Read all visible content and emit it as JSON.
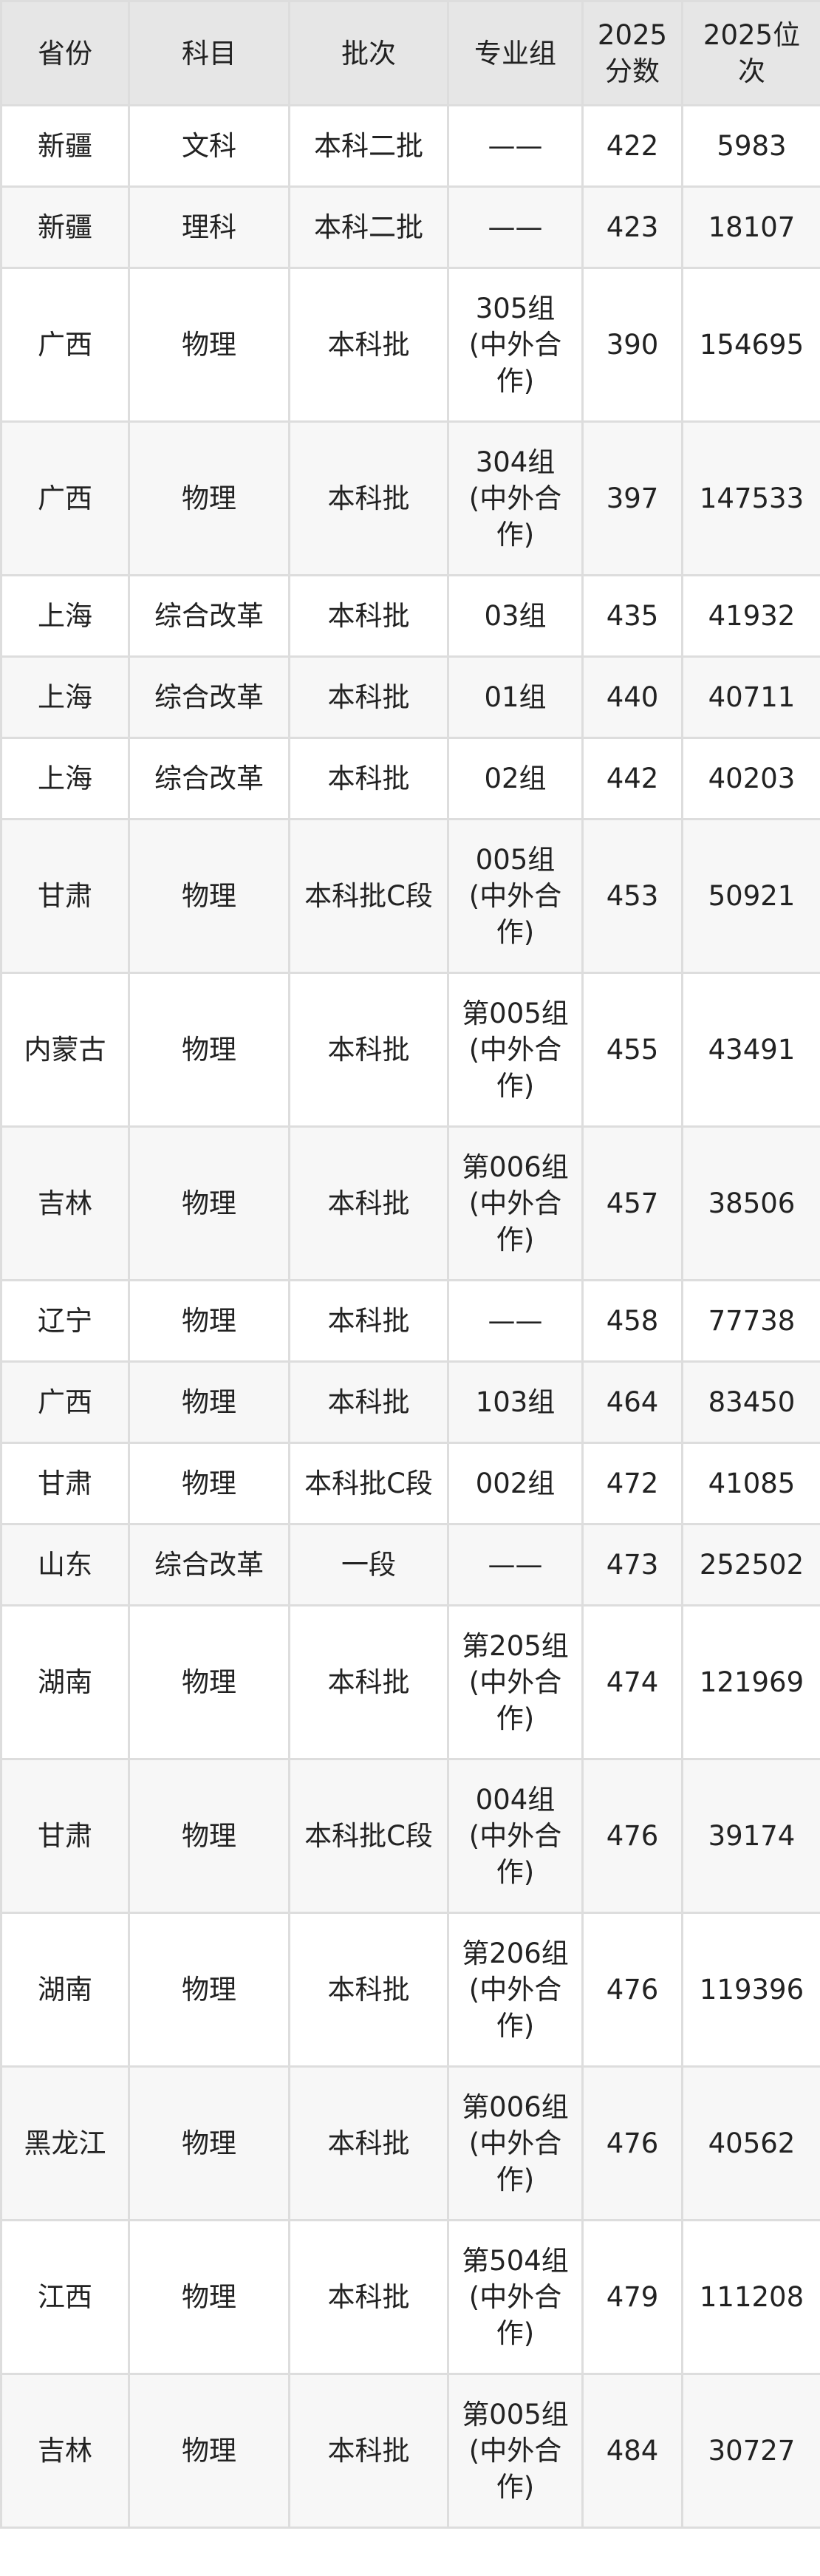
{
  "table": {
    "headers": [
      "省份",
      "科目",
      "批次",
      "专业组",
      "2025分数",
      "2025位次"
    ],
    "rows": [
      [
        "新疆",
        "文科",
        "本科二批",
        "——",
        "422",
        "5983"
      ],
      [
        "新疆",
        "理科",
        "本科二批",
        "——",
        "423",
        "18107"
      ],
      [
        "广西",
        "物理",
        "本科批",
        "305组(中外合作)",
        "390",
        "154695"
      ],
      [
        "广西",
        "物理",
        "本科批",
        "304组(中外合作)",
        "397",
        "147533"
      ],
      [
        "上海",
        "综合改革",
        "本科批",
        "03组",
        "435",
        "41932"
      ],
      [
        "上海",
        "综合改革",
        "本科批",
        "01组",
        "440",
        "40711"
      ],
      [
        "上海",
        "综合改革",
        "本科批",
        "02组",
        "442",
        "40203"
      ],
      [
        "甘肃",
        "物理",
        "本科批C段",
        "005组(中外合作)",
        "453",
        "50921"
      ],
      [
        "内蒙古",
        "物理",
        "本科批",
        "第005组(中外合作)",
        "455",
        "43491"
      ],
      [
        "吉林",
        "物理",
        "本科批",
        "第006组(中外合作)",
        "457",
        "38506"
      ],
      [
        "辽宁",
        "物理",
        "本科批",
        "——",
        "458",
        "77738"
      ],
      [
        "广西",
        "物理",
        "本科批",
        "103组",
        "464",
        "83450"
      ],
      [
        "甘肃",
        "物理",
        "本科批C段",
        "002组",
        "472",
        "41085"
      ],
      [
        "山东",
        "综合改革",
        "一段",
        "——",
        "473",
        "252502"
      ],
      [
        "湖南",
        "物理",
        "本科批",
        "第205组(中外合作)",
        "474",
        "121969"
      ],
      [
        "甘肃",
        "物理",
        "本科批C段",
        "004组(中外合作)",
        "476",
        "39174"
      ],
      [
        "湖南",
        "物理",
        "本科批",
        "第206组(中外合作)",
        "476",
        "119396"
      ],
      [
        "黑龙江",
        "物理",
        "本科批",
        "第006组(中外合作)",
        "476",
        "40562"
      ],
      [
        "江西",
        "物理",
        "本科批",
        "第504组(中外合作)",
        "479",
        "111208"
      ],
      [
        "吉林",
        "物理",
        "本科批",
        "第005组(中外合作)",
        "484",
        "30727"
      ]
    ]
  }
}
